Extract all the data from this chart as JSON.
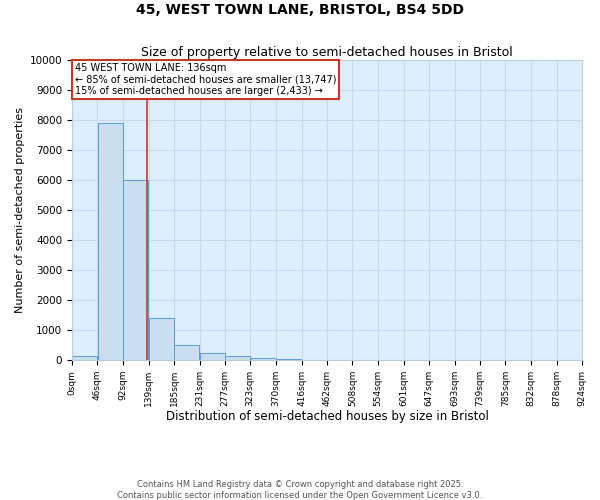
{
  "title1": "45, WEST TOWN LANE, BRISTOL, BS4 5DD",
  "title2": "Size of property relative to semi-detached houses in Bristol",
  "xlabel": "Distribution of semi-detached houses by size in Bristol",
  "ylabel": "Number of semi-detached properties",
  "annotation_title": "45 WEST TOWN LANE: 136sqm",
  "annotation_line1": "← 85% of semi-detached houses are smaller (13,747)",
  "annotation_line2": "15% of semi-detached houses are larger (2,433) →",
  "footer1": "Contains HM Land Registry data © Crown copyright and database right 2025.",
  "footer2": "Contains public sector information licensed under the Open Government Licence v3.0.",
  "bar_values": [
    150,
    7900,
    6000,
    1400,
    500,
    250,
    130,
    80,
    50,
    0,
    0,
    0,
    0,
    0,
    0,
    0,
    0,
    0,
    0,
    0
  ],
  "bin_edges": [
    0,
    46,
    92,
    139,
    185,
    231,
    277,
    323,
    370,
    416,
    462,
    508,
    554,
    601,
    647,
    693,
    739,
    785,
    832,
    878,
    924
  ],
  "tick_labels": [
    "0sqm",
    "46sqm",
    "92sqm",
    "139sqm",
    "185sqm",
    "231sqm",
    "277sqm",
    "323sqm",
    "370sqm",
    "416sqm",
    "462sqm",
    "508sqm",
    "554sqm",
    "601sqm",
    "647sqm",
    "693sqm",
    "739sqm",
    "785sqm",
    "832sqm",
    "878sqm",
    "924sqm"
  ],
  "property_size": 136,
  "ylim": [
    0,
    10000
  ],
  "yticks": [
    0,
    1000,
    2000,
    3000,
    4000,
    5000,
    6000,
    7000,
    8000,
    9000,
    10000
  ],
  "bar_color": "#c9dff0",
  "bar_edge_color": "#5b9bd5",
  "vline_color": "#c0392b",
  "annotation_box_color": "#c0392b",
  "grid_color": "#c8d8e8",
  "bg_color": "#ddeeff",
  "title_fontsize": 10,
  "subtitle_fontsize": 9
}
